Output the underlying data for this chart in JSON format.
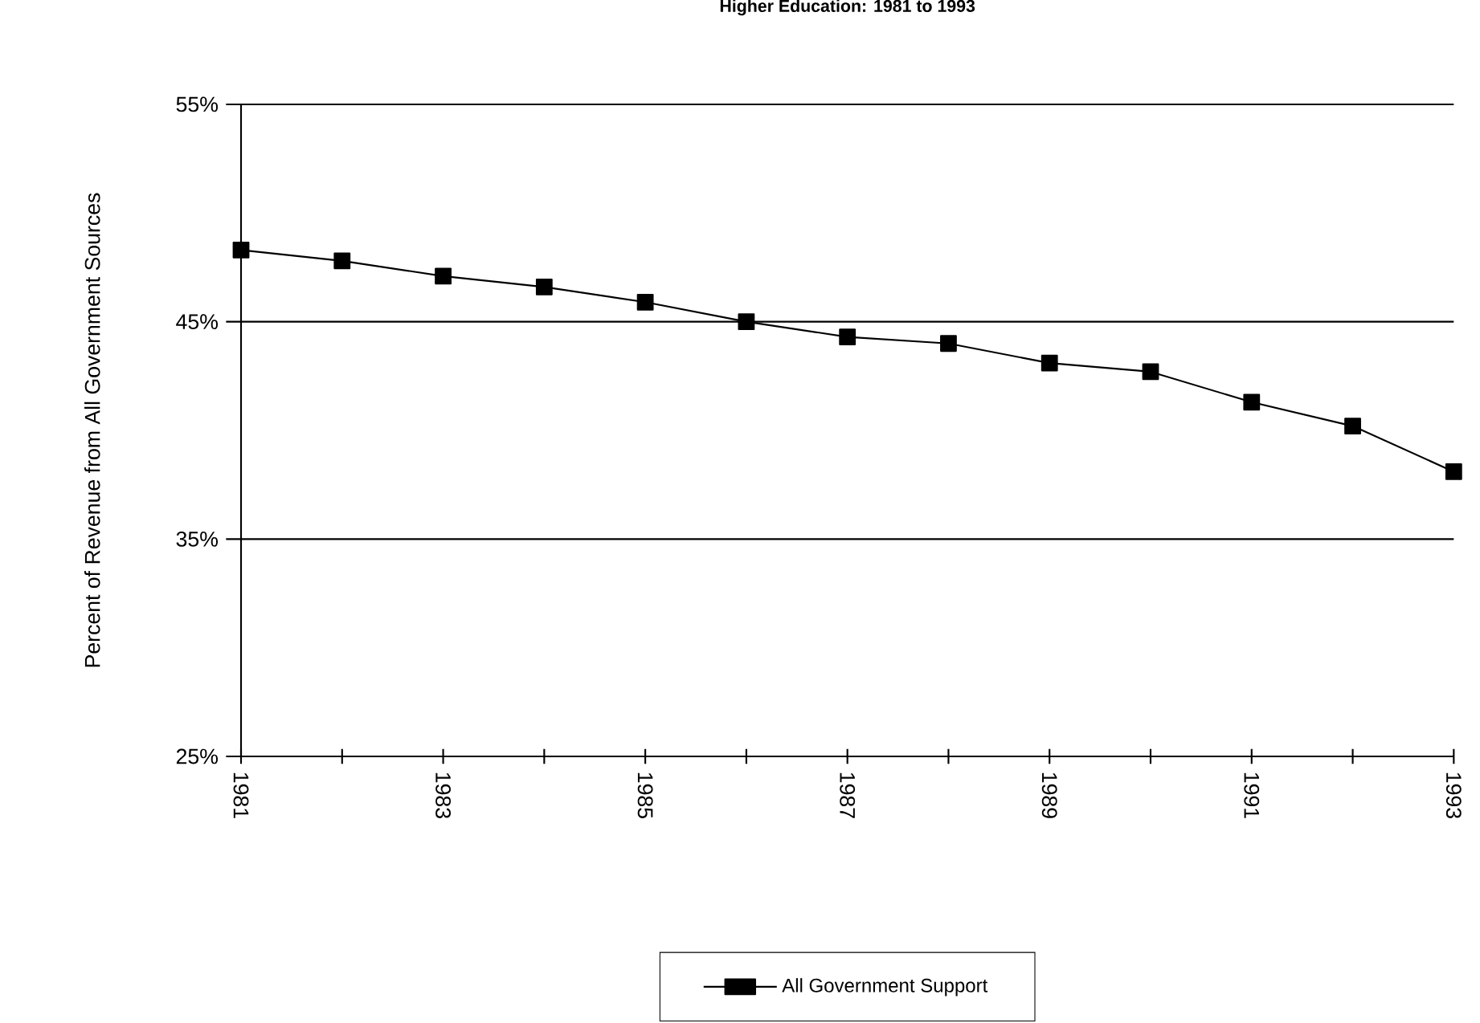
{
  "chart_data": {
    "type": "line",
    "title": "Higher Education:  1981 to 1993",
    "ylabel": "Percent of Revenue from All Government Sources",
    "x": [
      1981,
      1982,
      1983,
      1984,
      1985,
      1986,
      1987,
      1988,
      1989,
      1990,
      1991,
      1992,
      1993
    ],
    "series": [
      {
        "name": "All Government Support",
        "color": "#000000",
        "values": [
          48.3,
          47.8,
          47.1,
          46.6,
          45.9,
          45.0,
          44.3,
          44.0,
          43.1,
          42.7,
          41.3,
          40.2,
          38.1
        ]
      }
    ],
    "xlim": [
      1981,
      1993
    ],
    "xticks": [
      1981,
      {
        "value": 1982,
        "label": null
      },
      1983,
      {
        "value": 1984,
        "label": null
      },
      1985,
      {
        "value": 1986,
        "label": null
      },
      1987,
      {
        "value": 1988,
        "label": null
      },
      1989,
      {
        "value": 1990,
        "label": null
      },
      1991,
      {
        "value": 1992,
        "label": null
      },
      1993
    ],
    "ylim": [
      25,
      55
    ],
    "yticks": [
      {
        "value": 25,
        "label": "25%"
      },
      {
        "value": 35,
        "label": "35%"
      },
      {
        "value": 45,
        "label": "45%"
      },
      {
        "value": 55,
        "label": "55%"
      }
    ],
    "grid": "y",
    "legend": "bottom",
    "marker": "square",
    "line_style": "solid"
  }
}
